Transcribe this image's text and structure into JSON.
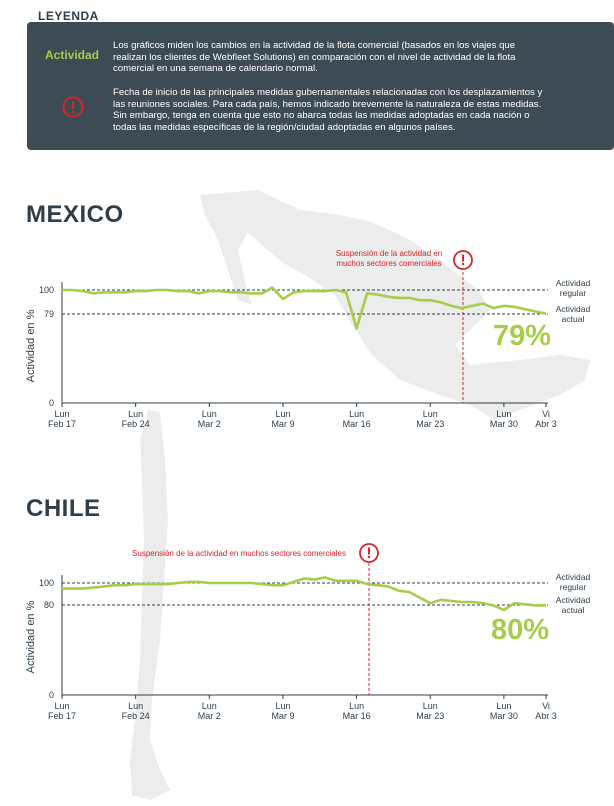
{
  "legend": {
    "title": "LEYENDA",
    "activity_key": "Actividad",
    "activity_text_lines": [
      "Los gráficos miden los cambios en la actividad de la flota comercial (basados en los viajes que",
      "realizan los clientes de Webfleet Solutions) en comparación con el nivel de actividad de la flota",
      "comercial en una semana de calendario normal."
    ],
    "measure_icon": "alert-icon",
    "measure_text_lines": [
      "Fecha de inicio de las principales medidas gubernamentales relacionadas con los desplazamientos y",
      "las reuniones sociales. Para cada país, hemos indicado brevemente la naturaleza de estas medidas.",
      "Sin embargo, tenga en cuenta que esto no abarca todas las medidas adoptadas en cada nación o",
      "todas las medidas específicas de la región/ciudad adoptadas en algunos países."
    ]
  },
  "colors": {
    "accent": "#a8cc4a",
    "alert": "#d7262b",
    "dark": "#3d4b55",
    "map": "#ebebeb"
  },
  "mexico": {
    "name": "MEXICO",
    "annotation_lines": [
      "Suspensión de la actividad en",
      "muchos sectores comerciales"
    ],
    "regular_label": [
      "Actividad",
      "regular"
    ],
    "actual_label": [
      "Actividad",
      "actual"
    ],
    "current_pct": "79%",
    "ylabel": "Actividad en %"
  },
  "chile": {
    "name": "CHILE",
    "annotation_lines": [
      "Suspensión de la actividad en muchos sectores comerciales"
    ],
    "regular_label": [
      "Actividad",
      "regular"
    ],
    "actual_label": [
      "Actividad",
      "actual"
    ],
    "current_pct": "80%",
    "ylabel": "Actividad en %"
  },
  "chart_data": [
    {
      "type": "line",
      "title": "MEXICO",
      "ylabel": "Actividad en %",
      "ylim": [
        0,
        100
      ],
      "yticks": [
        0,
        79,
        100
      ],
      "x_day_range": [
        0,
        46
      ],
      "x_ticks": [
        {
          "day": 0,
          "label": [
            "Lun",
            "Feb 17"
          ]
        },
        {
          "day": 7,
          "label": [
            "Lun",
            "Feb 24"
          ]
        },
        {
          "day": 14,
          "label": [
            "Lun",
            "Mar 2"
          ]
        },
        {
          "day": 21,
          "label": [
            "Lun",
            "Mar 9"
          ]
        },
        {
          "day": 28,
          "label": [
            "Lun",
            "Mar 16"
          ]
        },
        {
          "day": 35,
          "label": [
            "Lun",
            "Mar 23"
          ]
        },
        {
          "day": 42,
          "label": [
            "Lun",
            "Mar 30"
          ]
        },
        {
          "day": 46,
          "label": [
            "Vi",
            "Abr 3"
          ]
        }
      ],
      "reference_lines": [
        100,
        79
      ],
      "event_day": 38,
      "series": [
        {
          "values": [
            [
              0,
              100
            ],
            [
              1,
              100
            ],
            [
              2,
              99
            ],
            [
              3,
              97
            ],
            [
              4,
              98
            ],
            [
              5,
              98
            ],
            [
              6,
              98
            ],
            [
              7,
              99
            ],
            [
              8,
              99
            ],
            [
              9,
              100
            ],
            [
              10,
              100
            ],
            [
              11,
              99
            ],
            [
              12,
              99
            ],
            [
              13,
              97
            ],
            [
              14,
              99
            ],
            [
              15,
              99
            ],
            [
              16,
              98
            ],
            [
              17,
              98
            ],
            [
              18,
              97
            ],
            [
              19,
              97
            ],
            [
              20,
              102
            ],
            [
              21,
              92
            ],
            [
              22,
              98
            ],
            [
              23,
              99
            ],
            [
              24,
              99
            ],
            [
              25,
              99
            ],
            [
              26,
              100
            ],
            [
              27,
              98
            ],
            [
              28,
              66
            ],
            [
              29,
              97
            ],
            [
              30,
              96
            ],
            [
              31,
              94
            ],
            [
              32,
              93
            ],
            [
              33,
              93
            ],
            [
              34,
              91
            ],
            [
              35,
              91
            ],
            [
              36,
              89
            ],
            [
              37,
              86
            ],
            [
              38,
              84
            ],
            [
              39,
              86
            ],
            [
              40,
              88
            ],
            [
              41,
              84
            ],
            [
              42,
              86
            ],
            [
              43,
              85
            ],
            [
              44,
              83
            ],
            [
              45,
              81
            ],
            [
              46,
              79
            ]
          ]
        }
      ]
    },
    {
      "type": "line",
      "title": "CHILE",
      "ylabel": "Actividad en %",
      "ylim": [
        0,
        100
      ],
      "yticks": [
        0,
        80,
        100
      ],
      "x_day_range": [
        0,
        46
      ],
      "x_ticks": [
        {
          "day": 0,
          "label": [
            "Lun",
            "Feb 17"
          ]
        },
        {
          "day": 7,
          "label": [
            "Lun",
            "Feb 24"
          ]
        },
        {
          "day": 14,
          "label": [
            "Lun",
            "Mar 2"
          ]
        },
        {
          "day": 21,
          "label": [
            "Lun",
            "Mar 9"
          ]
        },
        {
          "day": 28,
          "label": [
            "Lun",
            "Mar 16"
          ]
        },
        {
          "day": 35,
          "label": [
            "Lun",
            "Mar 23"
          ]
        },
        {
          "day": 42,
          "label": [
            "Lun",
            "Mar 30"
          ]
        },
        {
          "day": 46,
          "label": [
            "Vi",
            "Abr 3"
          ]
        }
      ],
      "reference_lines": [
        100,
        80
      ],
      "event_day": 29,
      "series": [
        {
          "values": [
            [
              0,
              95
            ],
            [
              1,
              95
            ],
            [
              2,
              95
            ],
            [
              3,
              96
            ],
            [
              4,
              97
            ],
            [
              5,
              98
            ],
            [
              6,
              98
            ],
            [
              7,
              99
            ],
            [
              8,
              99
            ],
            [
              9,
              99
            ],
            [
              10,
              99
            ],
            [
              11,
              100
            ],
            [
              12,
              101
            ],
            [
              13,
              101
            ],
            [
              14,
              100
            ],
            [
              15,
              100
            ],
            [
              16,
              100
            ],
            [
              17,
              100
            ],
            [
              18,
              100
            ],
            [
              19,
              99
            ],
            [
              20,
              98
            ],
            [
              21,
              98
            ],
            [
              22,
              101
            ],
            [
              23,
              104
            ],
            [
              24,
              103
            ],
            [
              25,
              105
            ],
            [
              26,
              102
            ],
            [
              27,
              102
            ],
            [
              28,
              102
            ],
            [
              29,
              99
            ],
            [
              30,
              98
            ],
            [
              31,
              97
            ],
            [
              32,
              93
            ],
            [
              33,
              92
            ],
            [
              34,
              87
            ],
            [
              35,
              82
            ],
            [
              36,
              85
            ],
            [
              37,
              84
            ],
            [
              38,
              83
            ],
            [
              39,
              83
            ],
            [
              40,
              82
            ],
            [
              41,
              80
            ],
            [
              42,
              76
            ],
            [
              43,
              82
            ],
            [
              44,
              81
            ],
            [
              45,
              80
            ],
            [
              46,
              80
            ]
          ]
        }
      ]
    }
  ]
}
